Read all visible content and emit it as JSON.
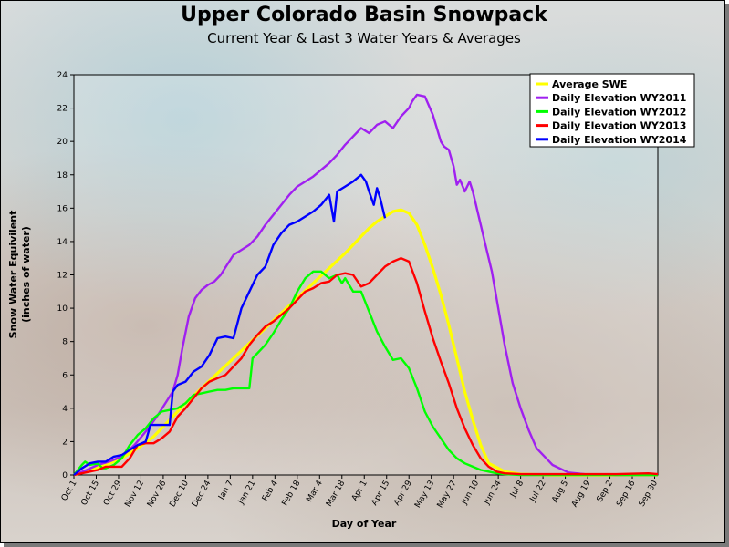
{
  "chart_data": {
    "type": "line",
    "title": "Upper Colorado Basin Snowpack",
    "subtitle": "Current Year & Last 3 Water Years & Averages",
    "xlabel": "Day of Year",
    "ylabel_line1": "Snow Water Equivilent",
    "ylabel_line2": "(inches of water)",
    "x_unit": "days since Oct 1",
    "xlim": [
      0,
      366
    ],
    "ylim": [
      0,
      24
    ],
    "y_ticks": [
      0,
      2,
      4,
      6,
      8,
      10,
      12,
      14,
      16,
      18,
      20,
      22,
      24
    ],
    "x_tick_labels": [
      "Oct 1",
      "Oct 15",
      "Oct 29",
      "Nov 12",
      "Nov 26",
      "Dec 10",
      "Dec 24",
      "Jan 7",
      "Jan 21",
      "Feb 4",
      "Feb 18",
      "Mar 4",
      "Mar 18",
      "Apr 1",
      "Apr 15",
      "Apr 29",
      "May 13",
      "May 27",
      "Jun 10",
      "Jun 24",
      "Jul 8",
      "Jul 22",
      "Aug 5",
      "Aug 19",
      "Sep 2",
      "Sep 16",
      "Sep 30"
    ],
    "legend_position": "top-right",
    "series": [
      {
        "name": "Average SWE",
        "color": "#ffff00",
        "x": [
          0,
          10,
          20,
          30,
          40,
          50,
          60,
          70,
          80,
          90,
          100,
          110,
          120,
          130,
          140,
          150,
          160,
          170,
          175,
          180,
          185,
          190,
          195,
          200,
          205,
          210,
          215,
          220,
          225,
          230,
          235,
          240,
          245,
          250,
          255,
          260,
          270,
          280,
          300,
          320,
          340,
          366
        ],
        "y": [
          0,
          0.3,
          0.6,
          1.0,
          1.6,
          2.3,
          3.3,
          4.3,
          5.2,
          6.1,
          7.0,
          7.9,
          8.8,
          9.7,
          10.6,
          11.5,
          12.4,
          13.3,
          13.8,
          14.3,
          14.8,
          15.2,
          15.5,
          15.8,
          15.9,
          15.7,
          15.0,
          13.8,
          12.4,
          10.8,
          9.0,
          7.0,
          5.0,
          3.3,
          1.8,
          0.7,
          0.2,
          0.05,
          0,
          0,
          0,
          0
        ]
      },
      {
        "name": "Daily Elevation WY2011",
        "color": "#a020f0",
        "x": [
          0,
          8,
          15,
          22,
          30,
          38,
          45,
          52,
          58,
          62,
          65,
          68,
          72,
          76,
          80,
          84,
          88,
          92,
          96,
          100,
          105,
          110,
          115,
          120,
          125,
          130,
          135,
          140,
          145,
          150,
          155,
          160,
          165,
          170,
          175,
          180,
          185,
          190,
          195,
          200,
          205,
          210,
          212,
          215,
          220,
          225,
          230,
          232,
          235,
          238,
          240,
          242,
          245,
          248,
          250,
          252,
          255,
          258,
          262,
          266,
          270,
          275,
          280,
          285,
          290,
          300,
          310,
          320,
          340,
          366
        ],
        "y": [
          0,
          0.3,
          0.6,
          0.8,
          1.1,
          1.8,
          2.6,
          3.5,
          4.4,
          5.0,
          6.0,
          7.6,
          9.5,
          10.6,
          11.1,
          11.4,
          11.6,
          12.0,
          12.6,
          13.2,
          13.5,
          13.8,
          14.3,
          15.0,
          15.6,
          16.2,
          16.8,
          17.3,
          17.6,
          17.9,
          18.3,
          18.7,
          19.2,
          19.8,
          20.3,
          20.8,
          20.5,
          21.0,
          21.2,
          20.8,
          21.5,
          22.0,
          22.4,
          22.8,
          22.7,
          21.6,
          20.0,
          19.7,
          19.5,
          18.5,
          17.4,
          17.7,
          17.0,
          17.6,
          17.0,
          16.2,
          15.0,
          13.8,
          12.2,
          10.0,
          7.8,
          5.5,
          4.0,
          2.7,
          1.6,
          0.6,
          0.15,
          0.05,
          0,
          0
        ]
      },
      {
        "name": "Daily Elevation WY2012",
        "color": "#00ff00",
        "x": [
          0,
          5,
          7,
          10,
          15,
          18,
          20,
          25,
          30,
          35,
          40,
          45,
          50,
          55,
          60,
          65,
          70,
          75,
          80,
          85,
          90,
          95,
          100,
          110,
          112,
          115,
          120,
          125,
          130,
          135,
          140,
          145,
          150,
          155,
          160,
          165,
          168,
          170,
          175,
          180,
          185,
          190,
          195,
          200,
          205,
          210,
          215,
          220,
          225,
          230,
          235,
          240,
          245,
          250,
          255,
          260,
          265,
          270,
          280,
          300,
          320,
          340,
          366
        ],
        "y": [
          0,
          0.6,
          0.8,
          0.6,
          0.7,
          0.4,
          0.4,
          0.6,
          1.0,
          1.8,
          2.4,
          2.8,
          3.4,
          3.8,
          3.9,
          4.0,
          4.3,
          4.8,
          4.9,
          5.0,
          5.1,
          5.1,
          5.2,
          5.2,
          7.0,
          7.3,
          7.8,
          8.5,
          9.3,
          10.0,
          11.0,
          11.8,
          12.2,
          12.2,
          11.8,
          12.0,
          11.5,
          11.8,
          11.0,
          11.0,
          9.8,
          8.6,
          7.7,
          6.9,
          7.0,
          6.4,
          5.2,
          3.8,
          2.9,
          2.2,
          1.5,
          1.0,
          0.7,
          0.5,
          0.3,
          0.2,
          0.1,
          0.05,
          0,
          0,
          0,
          0,
          0
        ]
      },
      {
        "name": "Daily Elevation WY2013",
        "color": "#ff0000",
        "x": [
          0,
          5,
          10,
          15,
          20,
          25,
          30,
          35,
          40,
          45,
          50,
          55,
          60,
          65,
          70,
          75,
          80,
          85,
          90,
          95,
          100,
          105,
          110,
          115,
          120,
          125,
          130,
          135,
          140,
          145,
          150,
          155,
          160,
          165,
          170,
          175,
          180,
          185,
          190,
          195,
          200,
          205,
          210,
          215,
          220,
          225,
          230,
          235,
          240,
          245,
          250,
          255,
          260,
          265,
          270,
          280,
          300,
          320,
          340,
          360,
          366
        ],
        "y": [
          0,
          0.1,
          0.2,
          0.3,
          0.5,
          0.5,
          0.5,
          1.0,
          1.8,
          1.9,
          1.9,
          2.2,
          2.6,
          3.5,
          4.0,
          4.6,
          5.2,
          5.6,
          5.8,
          6.0,
          6.5,
          7.0,
          7.8,
          8.4,
          8.9,
          9.2,
          9.6,
          10.0,
          10.5,
          11.0,
          11.2,
          11.5,
          11.6,
          12.0,
          12.1,
          12.0,
          11.3,
          11.5,
          12.0,
          12.5,
          12.8,
          13.0,
          12.8,
          11.5,
          9.8,
          8.2,
          6.8,
          5.5,
          4.0,
          2.8,
          1.8,
          1.0,
          0.5,
          0.2,
          0.1,
          0.05,
          0.05,
          0.05,
          0.05,
          0.1,
          0.05
        ]
      },
      {
        "name": "Daily Elevation WY2014",
        "color": "#0000ff",
        "x": [
          0,
          5,
          10,
          15,
          20,
          25,
          30,
          35,
          40,
          45,
          48,
          50,
          55,
          60,
          62,
          65,
          70,
          75,
          80,
          85,
          90,
          95,
          100,
          105,
          110,
          115,
          120,
          125,
          130,
          135,
          140,
          145,
          150,
          155,
          160,
          163,
          165,
          170,
          175,
          180,
          183,
          185,
          188,
          190,
          192,
          195
        ],
        "y": [
          0,
          0.4,
          0.7,
          0.8,
          0.8,
          1.1,
          1.2,
          1.5,
          1.8,
          2.0,
          3.0,
          3.0,
          3.0,
          3.0,
          5.0,
          5.4,
          5.6,
          6.2,
          6.5,
          7.2,
          8.2,
          8.3,
          8.2,
          10.0,
          11.0,
          12.0,
          12.5,
          13.8,
          14.5,
          15.0,
          15.2,
          15.5,
          15.8,
          16.2,
          16.8,
          15.2,
          17.0,
          17.3,
          17.6,
          18.0,
          17.6,
          17.0,
          16.2,
          17.2,
          16.6,
          15.4
        ]
      }
    ]
  }
}
